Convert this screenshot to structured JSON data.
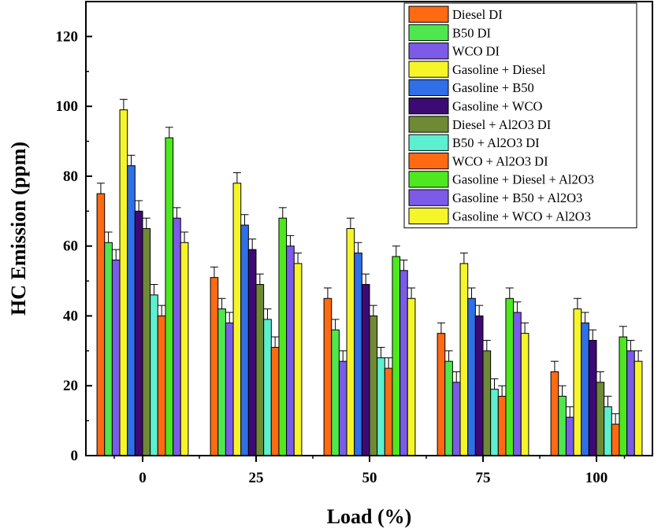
{
  "chart_data": {
    "type": "bar",
    "xlabel": "Load (%)",
    "ylabel": "HC Emission (ppm)",
    "ylim": [
      0,
      130
    ],
    "yticks": [
      0,
      20,
      40,
      60,
      80,
      100,
      120
    ],
    "categories": [
      "0",
      "25",
      "50",
      "75",
      "100"
    ],
    "legend_position": "top-right",
    "series": [
      {
        "name": "Diesel DI",
        "color": "#FF6A13",
        "values": [
          75,
          51,
          45,
          35,
          24
        ]
      },
      {
        "name": "B50 DI",
        "color": "#4EE84E",
        "values": [
          61,
          42,
          36,
          27,
          17
        ]
      },
      {
        "name": "WCO DI",
        "color": "#7B5BE8",
        "values": [
          56,
          38,
          27,
          21,
          11
        ]
      },
      {
        "name": "Gasoline + Diesel",
        "color": "#F5F52A",
        "values": [
          99,
          78,
          65,
          55,
          42
        ]
      },
      {
        "name": "Gasoline + B50",
        "color": "#2F6FE8",
        "values": [
          83,
          66,
          58,
          45,
          38
        ]
      },
      {
        "name": "Gasoline + WCO",
        "color": "#3D0A73",
        "values": [
          70,
          59,
          49,
          40,
          33
        ]
      },
      {
        "name": "Diesel + Al2O3 DI",
        "color": "#6E8A35",
        "values": [
          65,
          49,
          40,
          30,
          21
        ]
      },
      {
        "name": "B50 + Al2O3 DI",
        "color": "#5CF0D0",
        "values": [
          46,
          39,
          28,
          19,
          14
        ]
      },
      {
        "name": "WCO + Al2O3 DI",
        "color": "#FF6A13",
        "values": [
          40,
          31,
          25,
          17,
          9
        ]
      },
      {
        "name": "Gasoline + Diesel + Al2O3",
        "color": "#4EE81E",
        "values": [
          91,
          68,
          57,
          45,
          34
        ]
      },
      {
        "name": "Gasoline + B50 + Al2O3",
        "color": "#7B5BE8",
        "values": [
          68,
          60,
          53,
          41,
          30
        ]
      },
      {
        "name": "Gasoline + WCO + Al2O3",
        "color": "#F5F52A",
        "values": [
          61,
          55,
          45,
          35,
          27
        ]
      }
    ],
    "error": 3
  }
}
